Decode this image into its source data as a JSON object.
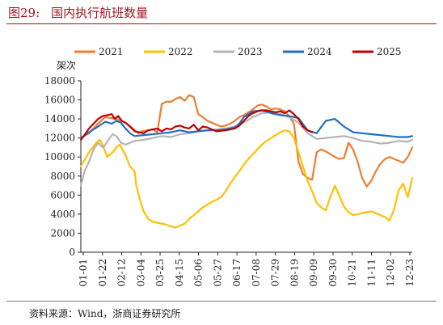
{
  "header": {
    "figure_no": "图29:",
    "title": "国内执行航班数量"
  },
  "footer": {
    "source": "资料来源：Wind，浙商证券研究所"
  },
  "colors": {
    "accent": "#a0141e",
    "2021": "#ed7d31",
    "2022": "#ffc000",
    "2023": "#b4b4b4",
    "2024": "#1f6fc4",
    "2025": "#c00000"
  },
  "chart_data": {
    "type": "line",
    "title": "国内执行航班数量",
    "ylabel": "架次",
    "xlabel": "",
    "ylim": [
      0,
      18000
    ],
    "yticks": [
      0,
      2000,
      4000,
      6000,
      8000,
      10000,
      12000,
      14000,
      16000,
      18000
    ],
    "x_ticks": [
      "01-01",
      "01-22",
      "02-12",
      "03-04",
      "03-25",
      "04-15",
      "05-06",
      "05-27",
      "06-17",
      "07-08",
      "07-29",
      "08-19",
      "09-09",
      "09-30",
      "10-21",
      "11-11",
      "12-02",
      "12-23"
    ],
    "x_domain": [
      1,
      365
    ],
    "legend_position": "top",
    "grid": false,
    "series": [
      {
        "name": "2021",
        "color": "#ed7d31",
        "x": [
          1,
          10,
          20,
          28,
          40,
          50,
          58,
          64,
          68,
          75,
          80,
          85,
          90,
          95,
          100,
          105,
          110,
          115,
          120,
          125,
          130,
          135,
          140,
          145,
          150,
          155,
          160,
          165,
          170,
          175,
          180,
          185,
          190,
          195,
          200,
          205,
          210,
          215,
          220,
          225,
          230,
          235,
          240,
          245,
          250,
          255,
          260,
          265,
          270,
          275,
          280,
          285,
          290,
          295,
          300,
          305,
          310,
          315,
          320,
          325,
          330,
          335,
          340,
          345,
          350,
          355,
          360,
          365
        ],
        "y": [
          12000,
          12500,
          13500,
          14200,
          14000,
          13600,
          13000,
          12500,
          12700,
          12800,
          12900,
          12600,
          15600,
          15800,
          15800,
          16100,
          16300,
          15900,
          16500,
          16300,
          14500,
          14200,
          13800,
          13600,
          13400,
          13200,
          13300,
          13500,
          13800,
          14200,
          14400,
          14700,
          15000,
          15400,
          15500,
          15300,
          15000,
          15100,
          15000,
          14800,
          14300,
          13500,
          9500,
          8200,
          7800,
          7600,
          10500,
          10800,
          10600,
          10300,
          10000,
          9800,
          9900,
          11500,
          10800,
          9500,
          7800,
          6900,
          7500,
          8500,
          9300,
          9800,
          10000,
          9800,
          9600,
          9400,
          10000,
          11000
        ]
      },
      {
        "name": "2022",
        "color": "#ffc000",
        "x": [
          1,
          10,
          18,
          22,
          26,
          30,
          36,
          40,
          44,
          50,
          55,
          60,
          62,
          66,
          70,
          75,
          80,
          85,
          90,
          95,
          100,
          105,
          110,
          115,
          120,
          125,
          130,
          135,
          140,
          145,
          150,
          155,
          160,
          165,
          170,
          175,
          180,
          185,
          190,
          195,
          200,
          205,
          210,
          215,
          220,
          225,
          230,
          235,
          240,
          245,
          250,
          255,
          260,
          265,
          270,
          275,
          280,
          285,
          290,
          295,
          300,
          305,
          310,
          315,
          320,
          325,
          330,
          335,
          340,
          345,
          350,
          355,
          360,
          365
        ],
        "y": [
          9000,
          10500,
          11500,
          11800,
          11000,
          10000,
          10500,
          11000,
          11300,
          10200,
          9000,
          8500,
          7000,
          5500,
          4300,
          3500,
          3200,
          3100,
          3000,
          2900,
          2700,
          2600,
          2800,
          3000,
          3500,
          3900,
          4300,
          4700,
          5000,
          5300,
          5500,
          5800,
          6400,
          7200,
          7900,
          8500,
          9200,
          9800,
          10300,
          10800,
          11300,
          11700,
          12000,
          12300,
          12600,
          12800,
          12700,
          12000,
          10500,
          9000,
          7500,
          6400,
          5200,
          4700,
          4400,
          5800,
          7000,
          5900,
          4800,
          4200,
          3900,
          4000,
          4100,
          4200,
          4300,
          4100,
          3900,
          3700,
          3300,
          4500,
          6500,
          7200,
          5800,
          7800
        ]
      },
      {
        "name": "2023",
        "color": "#b4b4b4",
        "x": [
          1,
          5,
          10,
          15,
          20,
          25,
          28,
          32,
          36,
          40,
          45,
          50,
          55,
          60,
          70,
          80,
          90,
          100,
          110,
          120,
          130,
          140,
          150,
          160,
          170,
          180,
          190,
          200,
          210,
          220,
          230,
          240,
          250,
          260,
          270,
          280,
          290,
          300,
          310,
          320,
          330,
          340,
          350,
          360,
          365
        ],
        "y": [
          7000,
          8500,
          9500,
          10800,
          11500,
          11000,
          11300,
          11900,
          12400,
          12200,
          11500,
          11300,
          11500,
          11700,
          11800,
          12000,
          12200,
          12100,
          12400,
          12500,
          12700,
          12800,
          12900,
          13000,
          13200,
          13600,
          14200,
          14600,
          14700,
          14500,
          14200,
          13600,
          12500,
          11900,
          12000,
          12100,
          12200,
          12000,
          11700,
          11600,
          11400,
          11500,
          11700,
          11600,
          11800
        ]
      },
      {
        "name": "2024",
        "color": "#1f6fc4",
        "x": [
          1,
          10,
          20,
          28,
          35,
          40,
          45,
          50,
          55,
          60,
          70,
          80,
          90,
          100,
          110,
          120,
          130,
          140,
          150,
          160,
          170,
          175,
          180,
          190,
          200,
          210,
          220,
          230,
          240,
          250,
          260,
          270,
          280,
          290,
          300,
          310,
          320,
          330,
          340,
          350,
          360,
          365
        ],
        "y": [
          12000,
          12600,
          13200,
          13700,
          13500,
          13800,
          13600,
          13000,
          12500,
          12200,
          12300,
          12400,
          12500,
          12600,
          12800,
          12600,
          12700,
          12800,
          12800,
          12900,
          13100,
          13500,
          14200,
          14800,
          14900,
          14600,
          14400,
          14300,
          14100,
          12800,
          12500,
          13800,
          14000,
          13200,
          12600,
          12500,
          12400,
          12300,
          12200,
          12100,
          12100,
          12200
        ]
      },
      {
        "name": "2025",
        "color": "#c00000",
        "x": [
          1,
          5,
          10,
          15,
          20,
          25,
          30,
          35,
          38,
          42,
          46,
          50,
          55,
          60,
          65,
          70,
          75,
          80,
          85,
          90,
          95,
          100,
          105,
          110,
          115,
          120,
          125,
          130,
          135,
          140,
          145,
          150,
          160,
          170,
          175,
          180,
          185,
          190,
          195,
          200,
          205,
          210,
          215,
          220,
          225,
          230,
          235,
          240,
          245,
          250,
          255
        ],
        "y": [
          11800,
          12300,
          13000,
          13500,
          14000,
          14300,
          14400,
          14500,
          14000,
          14300,
          13800,
          13600,
          13200,
          12700,
          12600,
          12500,
          12800,
          12900,
          13000,
          12700,
          13000,
          12900,
          13200,
          13300,
          13100,
          13000,
          13400,
          12800,
          13200,
          13100,
          12900,
          12700,
          12800,
          13000,
          13300,
          13800,
          14300,
          14600,
          14800,
          14900,
          14900,
          14800,
          14700,
          14800,
          14600,
          14900,
          14500,
          14000,
          13200,
          12800,
          12600
        ]
      }
    ]
  }
}
